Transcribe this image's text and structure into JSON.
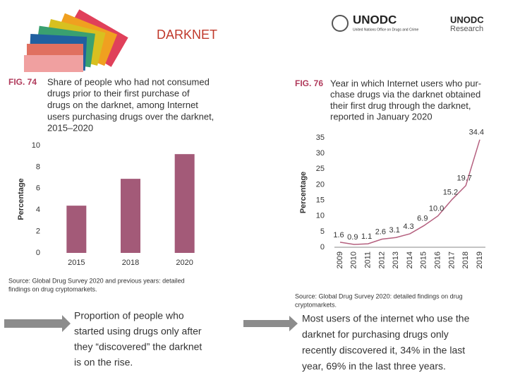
{
  "header": {
    "title": "DARKNET",
    "logo_main": "UNODC",
    "logo_sub": "United Nations Office on Drugs and Crime",
    "logo_research_1": "UNODC",
    "logo_research_2": "Research"
  },
  "captions": [
    {
      "lines": [
        "Proportion of people who",
        "started using drugs only after",
        "they “discovered” the darknet",
        "is on the rise."
      ]
    },
    {
      "lines": [
        "Most users of the internet who use the",
        "darknet for purchasing drugs only",
        "recently discovered it, 34% in the last",
        "year, 69% in the last three years."
      ]
    }
  ],
  "chart_data": [
    {
      "type": "bar",
      "figure_label": "FIG. 74",
      "title_lines": [
        "Share of people who had not consumed",
        "drugs prior to their first purchase of",
        "drugs on the darknet, among Internet",
        "users purchasing drugs over the darknet,",
        "2015–2020"
      ],
      "ylabel": "Percentage",
      "categories": [
        "2015",
        "2018",
        "2020"
      ],
      "values": [
        4.4,
        6.9,
        9.2
      ],
      "color": "#a35a78",
      "ylim": [
        0,
        10
      ],
      "yticks": [
        0,
        2,
        4,
        6,
        8,
        10
      ],
      "source_lines": [
        "Source: Global Drug Survey 2020 and previous years: detailed",
        "findings on drug cryptomarkets."
      ]
    },
    {
      "type": "line",
      "figure_label": "FIG. 76",
      "title_lines": [
        "Year in which Internet users who pur-",
        "chase drugs via the darknet obtained",
        "their first drug through the darknet,",
        "reported in January 2020"
      ],
      "ylabel": "Percentage",
      "categories": [
        "2009",
        "2010",
        "2011",
        "2012",
        "2013",
        "2014",
        "2015",
        "2016",
        "2017",
        "2018",
        "2019"
      ],
      "values": [
        1.6,
        0.9,
        1.1,
        2.6,
        3.1,
        4.3,
        6.9,
        10.0,
        15.2,
        19.7,
        34.4
      ],
      "value_labels": [
        "1.6",
        "0.9",
        "1.1",
        "2.6",
        "3.1",
        "4.3",
        "6.9",
        "10.0",
        "15.2",
        "19.7",
        "34.4"
      ],
      "color": "#b5607f",
      "ylim": [
        0,
        35
      ],
      "yticks": [
        0,
        5,
        10,
        15,
        20,
        25,
        30,
        35
      ],
      "source_lines": [
        "Source: Global Drug Survey 2020: detailed findings on drug",
        "cryptomarkets."
      ]
    }
  ]
}
